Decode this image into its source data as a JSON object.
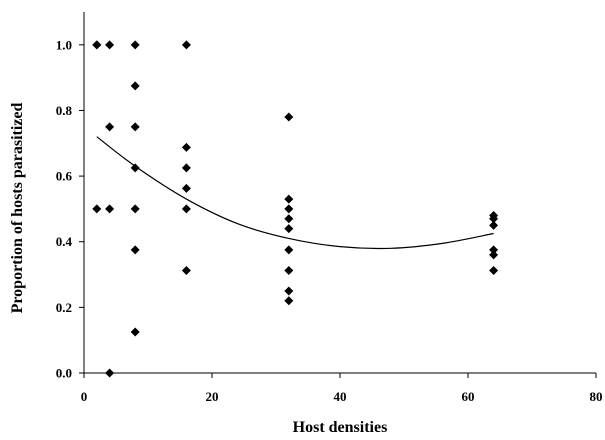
{
  "chart_data": {
    "type": "scatter",
    "xlabel": "Host densities",
    "ylabel": "Proportion of hosts parasitized",
    "xlim": [
      0,
      80
    ],
    "ylim": [
      0,
      1.1
    ],
    "x_ticks": [
      0,
      20,
      40,
      60,
      80
    ],
    "y_ticks": [
      0.0,
      0.2,
      0.4,
      0.6,
      0.8,
      1.0
    ],
    "x_tick_labels": [
      "0",
      "20",
      "40",
      "60",
      "80"
    ],
    "y_tick_labels": [
      "0.0",
      "0.2",
      "0.4",
      "0.6",
      "0.8",
      "1.0"
    ],
    "grid": false,
    "legend": "none",
    "marker_color": "#000000",
    "series": [
      {
        "marker": "diamond",
        "points": [
          {
            "x": 2,
            "y": 1.0
          },
          {
            "x": 2,
            "y": 1.0
          },
          {
            "x": 2,
            "y": 0.5
          },
          {
            "x": 4,
            "y": 1.0
          },
          {
            "x": 4,
            "y": 0.75
          },
          {
            "x": 4,
            "y": 0.5
          },
          {
            "x": 4,
            "y": 0.0
          },
          {
            "x": 8,
            "y": 1.0
          },
          {
            "x": 8,
            "y": 0.875
          },
          {
            "x": 8,
            "y": 0.75
          },
          {
            "x": 8,
            "y": 0.625
          },
          {
            "x": 8,
            "y": 0.5
          },
          {
            "x": 8,
            "y": 0.375
          },
          {
            "x": 8,
            "y": 0.125
          },
          {
            "x": 16,
            "y": 1.0
          },
          {
            "x": 16,
            "y": 0.6875
          },
          {
            "x": 16,
            "y": 0.625
          },
          {
            "x": 16,
            "y": 0.5625
          },
          {
            "x": 16,
            "y": 0.5
          },
          {
            "x": 16,
            "y": 0.3125
          },
          {
            "x": 32,
            "y": 0.78
          },
          {
            "x": 32,
            "y": 0.53
          },
          {
            "x": 32,
            "y": 0.5
          },
          {
            "x": 32,
            "y": 0.47
          },
          {
            "x": 32,
            "y": 0.44
          },
          {
            "x": 32,
            "y": 0.375
          },
          {
            "x": 32,
            "y": 0.3125
          },
          {
            "x": 32,
            "y": 0.25
          },
          {
            "x": 32,
            "y": 0.22
          },
          {
            "x": 64,
            "y": 0.48
          },
          {
            "x": 64,
            "y": 0.47
          },
          {
            "x": 64,
            "y": 0.45
          },
          {
            "x": 64,
            "y": 0.375
          },
          {
            "x": 64,
            "y": 0.36
          },
          {
            "x": 64,
            "y": 0.3125
          }
        ]
      }
    ],
    "trendline": {
      "type": "polynomial-2",
      "points": [
        {
          "x": 2,
          "y": 0.72
        },
        {
          "x": 8,
          "y": 0.63
        },
        {
          "x": 16,
          "y": 0.53
        },
        {
          "x": 24,
          "y": 0.455
        },
        {
          "x": 32,
          "y": 0.41
        },
        {
          "x": 40,
          "y": 0.385
        },
        {
          "x": 48,
          "y": 0.38
        },
        {
          "x": 56,
          "y": 0.395
        },
        {
          "x": 64,
          "y": 0.425
        }
      ]
    }
  }
}
